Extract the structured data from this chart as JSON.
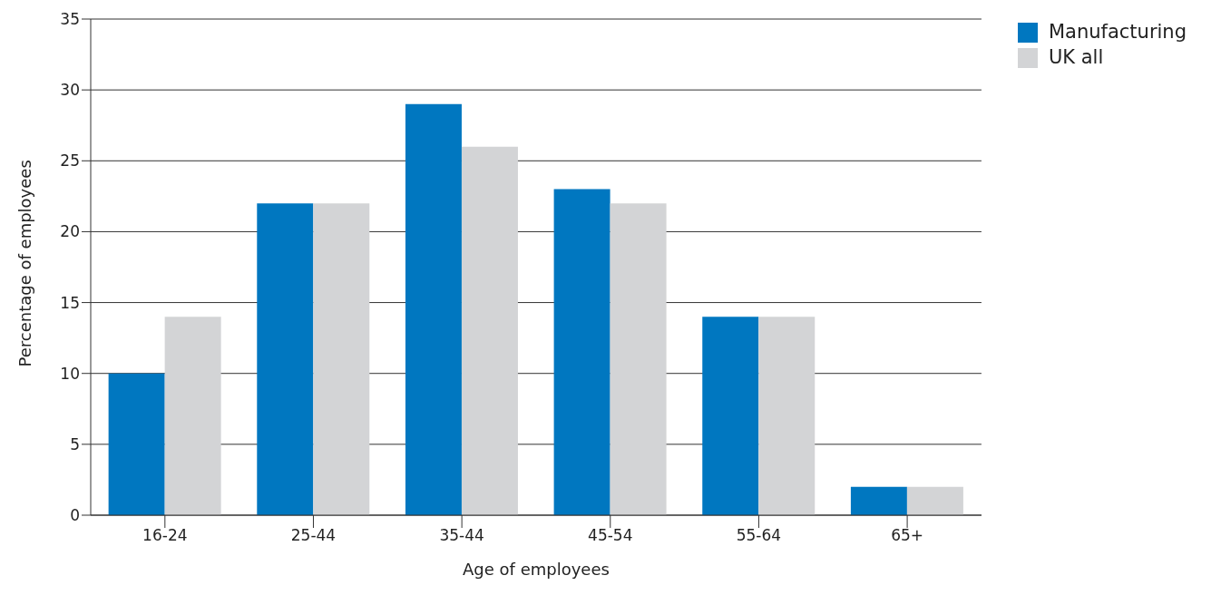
{
  "chart_data": {
    "type": "bar",
    "xlabel": "Age of employees",
    "ylabel": "Percentage of employees",
    "categories": [
      "16-24",
      "25-44",
      "35-44",
      "45-54",
      "55-64",
      "65+"
    ],
    "series": [
      {
        "name": "Manufacturing",
        "color": "#0077c0",
        "values": [
          10,
          22,
          29,
          23,
          14,
          2
        ]
      },
      {
        "name": "UK all",
        "color": "#d3d4d6",
        "values": [
          14,
          22,
          26,
          22,
          14,
          2
        ]
      }
    ],
    "ylim": [
      0,
      35
    ],
    "yticks": [
      0,
      5,
      10,
      15,
      20,
      25,
      30,
      35
    ],
    "grid": "y",
    "legend": "top right"
  }
}
